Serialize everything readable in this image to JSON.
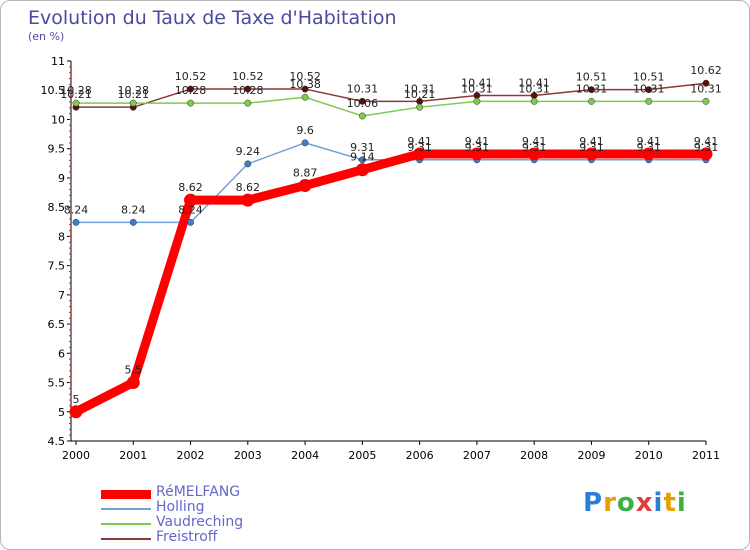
{
  "title": "Evolution du Taux de Taxe d'Habitation",
  "subtitle": "(en %)",
  "logo": {
    "letters": [
      {
        "ch": "P",
        "color": "#2a7fd4"
      },
      {
        "ch": "r",
        "color": "#e8a000"
      },
      {
        "ch": "o",
        "color": "#3cb043"
      },
      {
        "ch": "x",
        "color": "#e23b3b"
      },
      {
        "ch": "i",
        "color": "#2a7fd4"
      },
      {
        "ch": "t",
        "color": "#e8a000"
      },
      {
        "ch": "i",
        "color": "#3cb043"
      }
    ]
  },
  "chart_data": {
    "type": "line",
    "x": [
      "2000",
      "2001",
      "2002",
      "2003",
      "2004",
      "2005",
      "2006",
      "2007",
      "2008",
      "2009",
      "2010",
      "2011"
    ],
    "ylim": [
      4.5,
      11
    ],
    "yticks": [
      "4.5",
      "5",
      "5.5",
      "6",
      "6.5",
      "7",
      "7.5",
      "8",
      "8.5",
      "9",
      "9.5",
      "10",
      "10.5",
      "11"
    ],
    "grid": false,
    "legend_position": "bottom-left",
    "series": [
      {
        "name": "RéMELFANG",
        "color": "#ff0000",
        "marker": "#ff0000",
        "width": 9,
        "values": [
          5,
          5.5,
          8.62,
          8.62,
          8.87,
          9.14,
          9.41,
          9.41,
          9.41,
          9.41,
          9.41,
          9.41
        ],
        "labels": [
          "5",
          "5.5",
          "8.62",
          "8.62",
          "8.87",
          "9.14",
          "9.41",
          "9.41",
          "9.41",
          "9.41",
          "9.41",
          "9.41"
        ]
      },
      {
        "name": "Holling",
        "color": "#6fa1d6",
        "marker": "#3c7fcf",
        "width": 1.5,
        "values": [
          8.24,
          8.24,
          8.24,
          9.24,
          9.6,
          9.31,
          9.31,
          9.31,
          9.31,
          9.31,
          9.31,
          9.31
        ],
        "labels": [
          "8.24",
          "8.24",
          "8.24",
          "9.24",
          "9.6",
          "9.31",
          "9.31",
          "9.31",
          "9.31",
          "9.31",
          "9.31",
          "9.31"
        ]
      },
      {
        "name": "Vaudreching",
        "color": "#7ccc4c",
        "marker": "#7ccc4c",
        "width": 1.5,
        "values": [
          10.28,
          10.28,
          10.28,
          10.28,
          10.38,
          10.06,
          10.21,
          10.31,
          10.31,
          10.31,
          10.31,
          10.31
        ],
        "labels": [
          "10.28",
          "10.28",
          "10.28",
          "10.28",
          "10.38",
          "10.06",
          "10.21",
          "10.31",
          "10.31",
          "10.31",
          "10.31",
          "10.31"
        ]
      },
      {
        "name": "Freistroff",
        "color": "#8b3a3a",
        "marker": "#5a0f0f",
        "width": 1.5,
        "values": [
          10.21,
          10.21,
          10.52,
          10.52,
          10.52,
          10.31,
          10.31,
          10.41,
          10.41,
          10.51,
          10.51,
          10.62
        ],
        "labels": [
          "10.21",
          "10.21",
          "10.52",
          "10.52",
          "10.52",
          "10.31",
          "10.31",
          "10.41",
          "10.41",
          "10.51",
          "10.51",
          "10.62"
        ]
      }
    ]
  }
}
